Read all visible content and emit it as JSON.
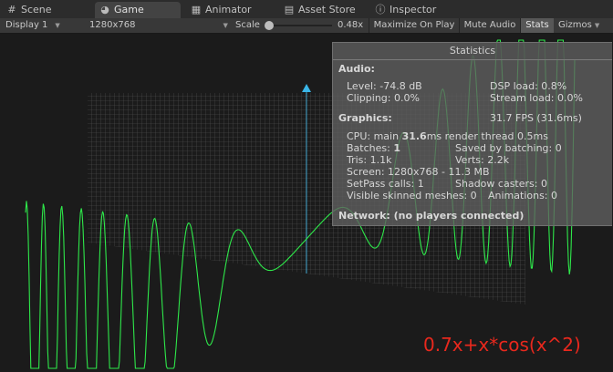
{
  "tabs": [
    {
      "label": "Scene",
      "icon": "hash-icon"
    },
    {
      "label": "Game",
      "icon": "pacman-icon"
    },
    {
      "label": "Animator",
      "icon": "animator-icon"
    },
    {
      "label": "Asset Store",
      "icon": "store-icon"
    },
    {
      "label": "Inspector",
      "icon": "info-icon"
    }
  ],
  "toolbar": {
    "display": "Display 1",
    "resolution": "1280x768",
    "scale_label": "Scale",
    "scale_value": "0.48x",
    "maximize": "Maximize On Play",
    "mute": "Mute Audio",
    "stats": "Stats",
    "gizmos": "Gizmos"
  },
  "stats": {
    "title": "Statistics",
    "audio_header": "Audio:",
    "level": "Level: -74.8 dB",
    "clipping": "Clipping: 0.0%",
    "dsp_load": "DSP load: 0.8%",
    "stream_load": "Stream load: 0.0%",
    "graphics_header": "Graphics:",
    "fps": "31.7 FPS (31.6ms)",
    "cpu_prefix": "CPU: main ",
    "cpu_main": "31.6",
    "cpu_suffix": "ms  render thread 0.5ms",
    "batches_prefix": "Batches: ",
    "batches_value": "1",
    "saved_batching": "Saved by batching: 0",
    "tris": "Tris: 1.1k",
    "verts": "Verts: 2.2k",
    "screen": "Screen: 1280x768 - 11.3 MB",
    "setpass": "SetPass calls: 1",
    "shadow": "Shadow casters: 0",
    "skinned": "Visible skinned meshes: 0",
    "animations": "Animations: 0",
    "network": "Network: (no players connected)"
  },
  "formula": "0.7x+x*cos(x^2)",
  "colors": {
    "curve": "#2ee84a",
    "axis": "#3ab6e8",
    "formula": "#e8281d",
    "grid": "#c8c8c8"
  }
}
